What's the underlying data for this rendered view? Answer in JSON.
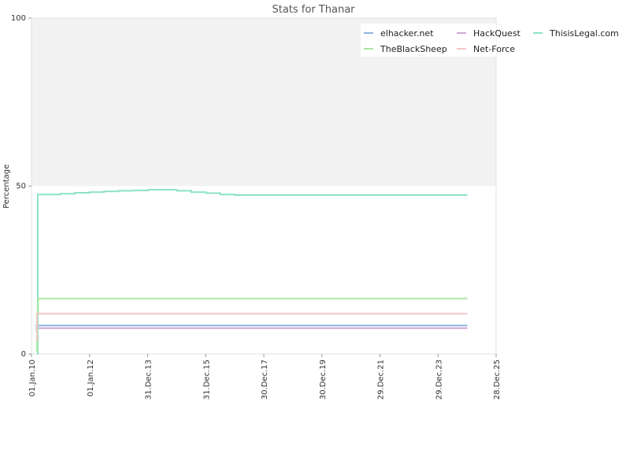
{
  "chart_data": {
    "type": "line",
    "title": "Stats for Thanar",
    "xlabel": "",
    "ylabel": "Percentage",
    "ylim": [
      0,
      100
    ],
    "xlim": [
      "2010-01-01",
      "2025-12-28"
    ],
    "y_ticks": [
      "0",
      "50",
      "100"
    ],
    "x_ticks": [
      {
        "label": "01.Jan.10",
        "date": "2010-01-01"
      },
      {
        "label": "01.Jan.12",
        "date": "2012-01-01"
      },
      {
        "label": "31.Dec.13",
        "date": "2013-12-31"
      },
      {
        "label": "31.Dec.15",
        "date": "2015-12-31"
      },
      {
        "label": "30.Dec.17",
        "date": "2017-12-30"
      },
      {
        "label": "30.Dec.19",
        "date": "2019-12-30"
      },
      {
        "label": "29.Dec.21",
        "date": "2021-12-29"
      },
      {
        "label": "29.Dec.23",
        "date": "2023-12-29"
      },
      {
        "label": "28.Dec.25",
        "date": "2025-12-28"
      }
    ],
    "grid": false,
    "legend_position": "top-right",
    "shaded_band": {
      "y_from": 50,
      "y_to": 100,
      "color": "#f2f2f2"
    },
    "series": [
      {
        "name": "elhacker.net",
        "color": "#8fb4e0",
        "points": [
          [
            "2010-03-01",
            7
          ],
          [
            "2010-03-05",
            8.5
          ],
          [
            "2025-01-01",
            8.5
          ]
        ]
      },
      {
        "name": "HackQuest",
        "color": "#d3a7d6",
        "points": [
          [
            "2010-03-01",
            6.5
          ],
          [
            "2010-03-08",
            7.7
          ],
          [
            "2025-01-01",
            7.7
          ]
        ]
      },
      {
        "name": "ThisisLegal.com",
        "color": "#8de2c4",
        "points": [
          [
            "2010-03-12",
            0
          ],
          [
            "2010-03-20",
            47.5
          ],
          [
            "2011-01-01",
            47.7
          ],
          [
            "2011-07-01",
            48
          ],
          [
            "2012-01-01",
            48.2
          ],
          [
            "2012-07-01",
            48.4
          ],
          [
            "2013-01-01",
            48.6
          ],
          [
            "2013-07-01",
            48.7
          ],
          [
            "2014-01-01",
            48.9
          ],
          [
            "2014-07-01",
            48.9
          ],
          [
            "2015-01-01",
            48.6
          ],
          [
            "2015-07-01",
            48.2
          ],
          [
            "2016-01-01",
            47.9
          ],
          [
            "2016-07-01",
            47.5
          ],
          [
            "2017-01-01",
            47.3
          ],
          [
            "2025-01-01",
            47.3
          ]
        ]
      },
      {
        "name": "TheBlackSheep",
        "color": "#a9e8a0",
        "points": [
          [
            "2010-03-01",
            1
          ],
          [
            "2010-03-10",
            12
          ],
          [
            "2010-03-25",
            16.5
          ],
          [
            "2025-01-01",
            16.5
          ]
        ]
      },
      {
        "name": "Net-Force",
        "color": "#f5c6c6",
        "points": [
          [
            "2010-03-01",
            4
          ],
          [
            "2010-03-10",
            12
          ],
          [
            "2025-01-01",
            12
          ]
        ]
      }
    ]
  }
}
